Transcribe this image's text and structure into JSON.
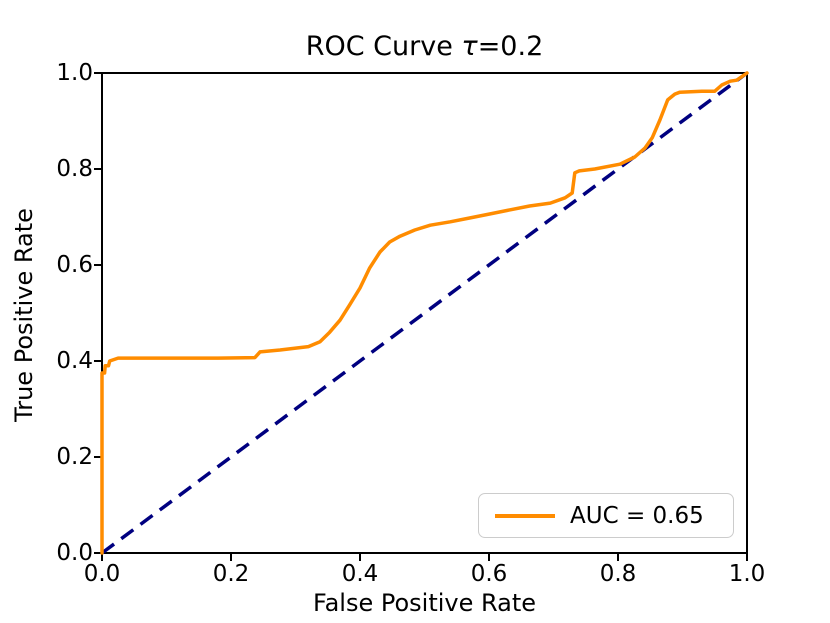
{
  "figure": {
    "title": {
      "prefix": "ROC Curve ",
      "tau": "τ",
      "suffix": "=0.2"
    },
    "xlabel": "False Positive Rate",
    "ylabel": "True Positive Rate"
  },
  "legend": {
    "label": "AUC = 0.65",
    "position": "lower right"
  },
  "colors": {
    "curve": "#ff8c00",
    "diagonal": "#000080",
    "axis": "#000000",
    "legend_border": "#cccccc",
    "background": "#ffffff"
  },
  "chart_data": {
    "type": "line",
    "title": "ROC Curve τ=0.2",
    "xlabel": "False Positive Rate",
    "ylabel": "True Positive Rate",
    "xlim": [
      0,
      1
    ],
    "ylim": [
      0,
      1
    ],
    "grid": false,
    "legend_position": "lower right",
    "x_ticks": [
      "0.0",
      "0.2",
      "0.4",
      "0.6",
      "0.8",
      "1.0"
    ],
    "y_ticks": [
      "0.0",
      "0.2",
      "0.4",
      "0.6",
      "0.8",
      "1.0"
    ],
    "auc": 0.65,
    "series": [
      {
        "name": "AUC = 0.65",
        "color": "#ff8c00",
        "linestyle": "solid",
        "x": [
          0,
          0,
          0.004,
          0.005,
          0.01,
          0.012,
          0.025,
          0.1,
          0.18,
          0.237,
          0.245,
          0.276,
          0.32,
          0.338,
          0.353,
          0.369,
          0.384,
          0.4,
          0.415,
          0.431,
          0.446,
          0.462,
          0.485,
          0.509,
          0.54,
          0.57,
          0.6,
          0.633,
          0.663,
          0.695,
          0.718,
          0.729,
          0.733,
          0.74,
          0.764,
          0.803,
          0.826,
          0.842,
          0.853,
          0.865,
          0.877,
          0.888,
          0.896,
          0.93,
          0.95,
          0.961,
          0.974,
          0.984,
          1
        ],
        "y": [
          0,
          0.375,
          0.375,
          0.39,
          0.39,
          0.4,
          0.406,
          0.406,
          0.406,
          0.407,
          0.419,
          0.423,
          0.43,
          0.44,
          0.46,
          0.485,
          0.517,
          0.552,
          0.594,
          0.627,
          0.648,
          0.66,
          0.673,
          0.683,
          0.69,
          0.698,
          0.706,
          0.715,
          0.723,
          0.729,
          0.74,
          0.75,
          0.792,
          0.796,
          0.8,
          0.81,
          0.825,
          0.844,
          0.865,
          0.902,
          0.944,
          0.956,
          0.96,
          0.962,
          0.962,
          0.975,
          0.983,
          0.985,
          1
        ],
        "smooth": true
      },
      {
        "name": "chance-diagonal",
        "color": "#000080",
        "linestyle": "dashed",
        "x": [
          0,
          1
        ],
        "y": [
          0,
          1
        ]
      }
    ]
  }
}
